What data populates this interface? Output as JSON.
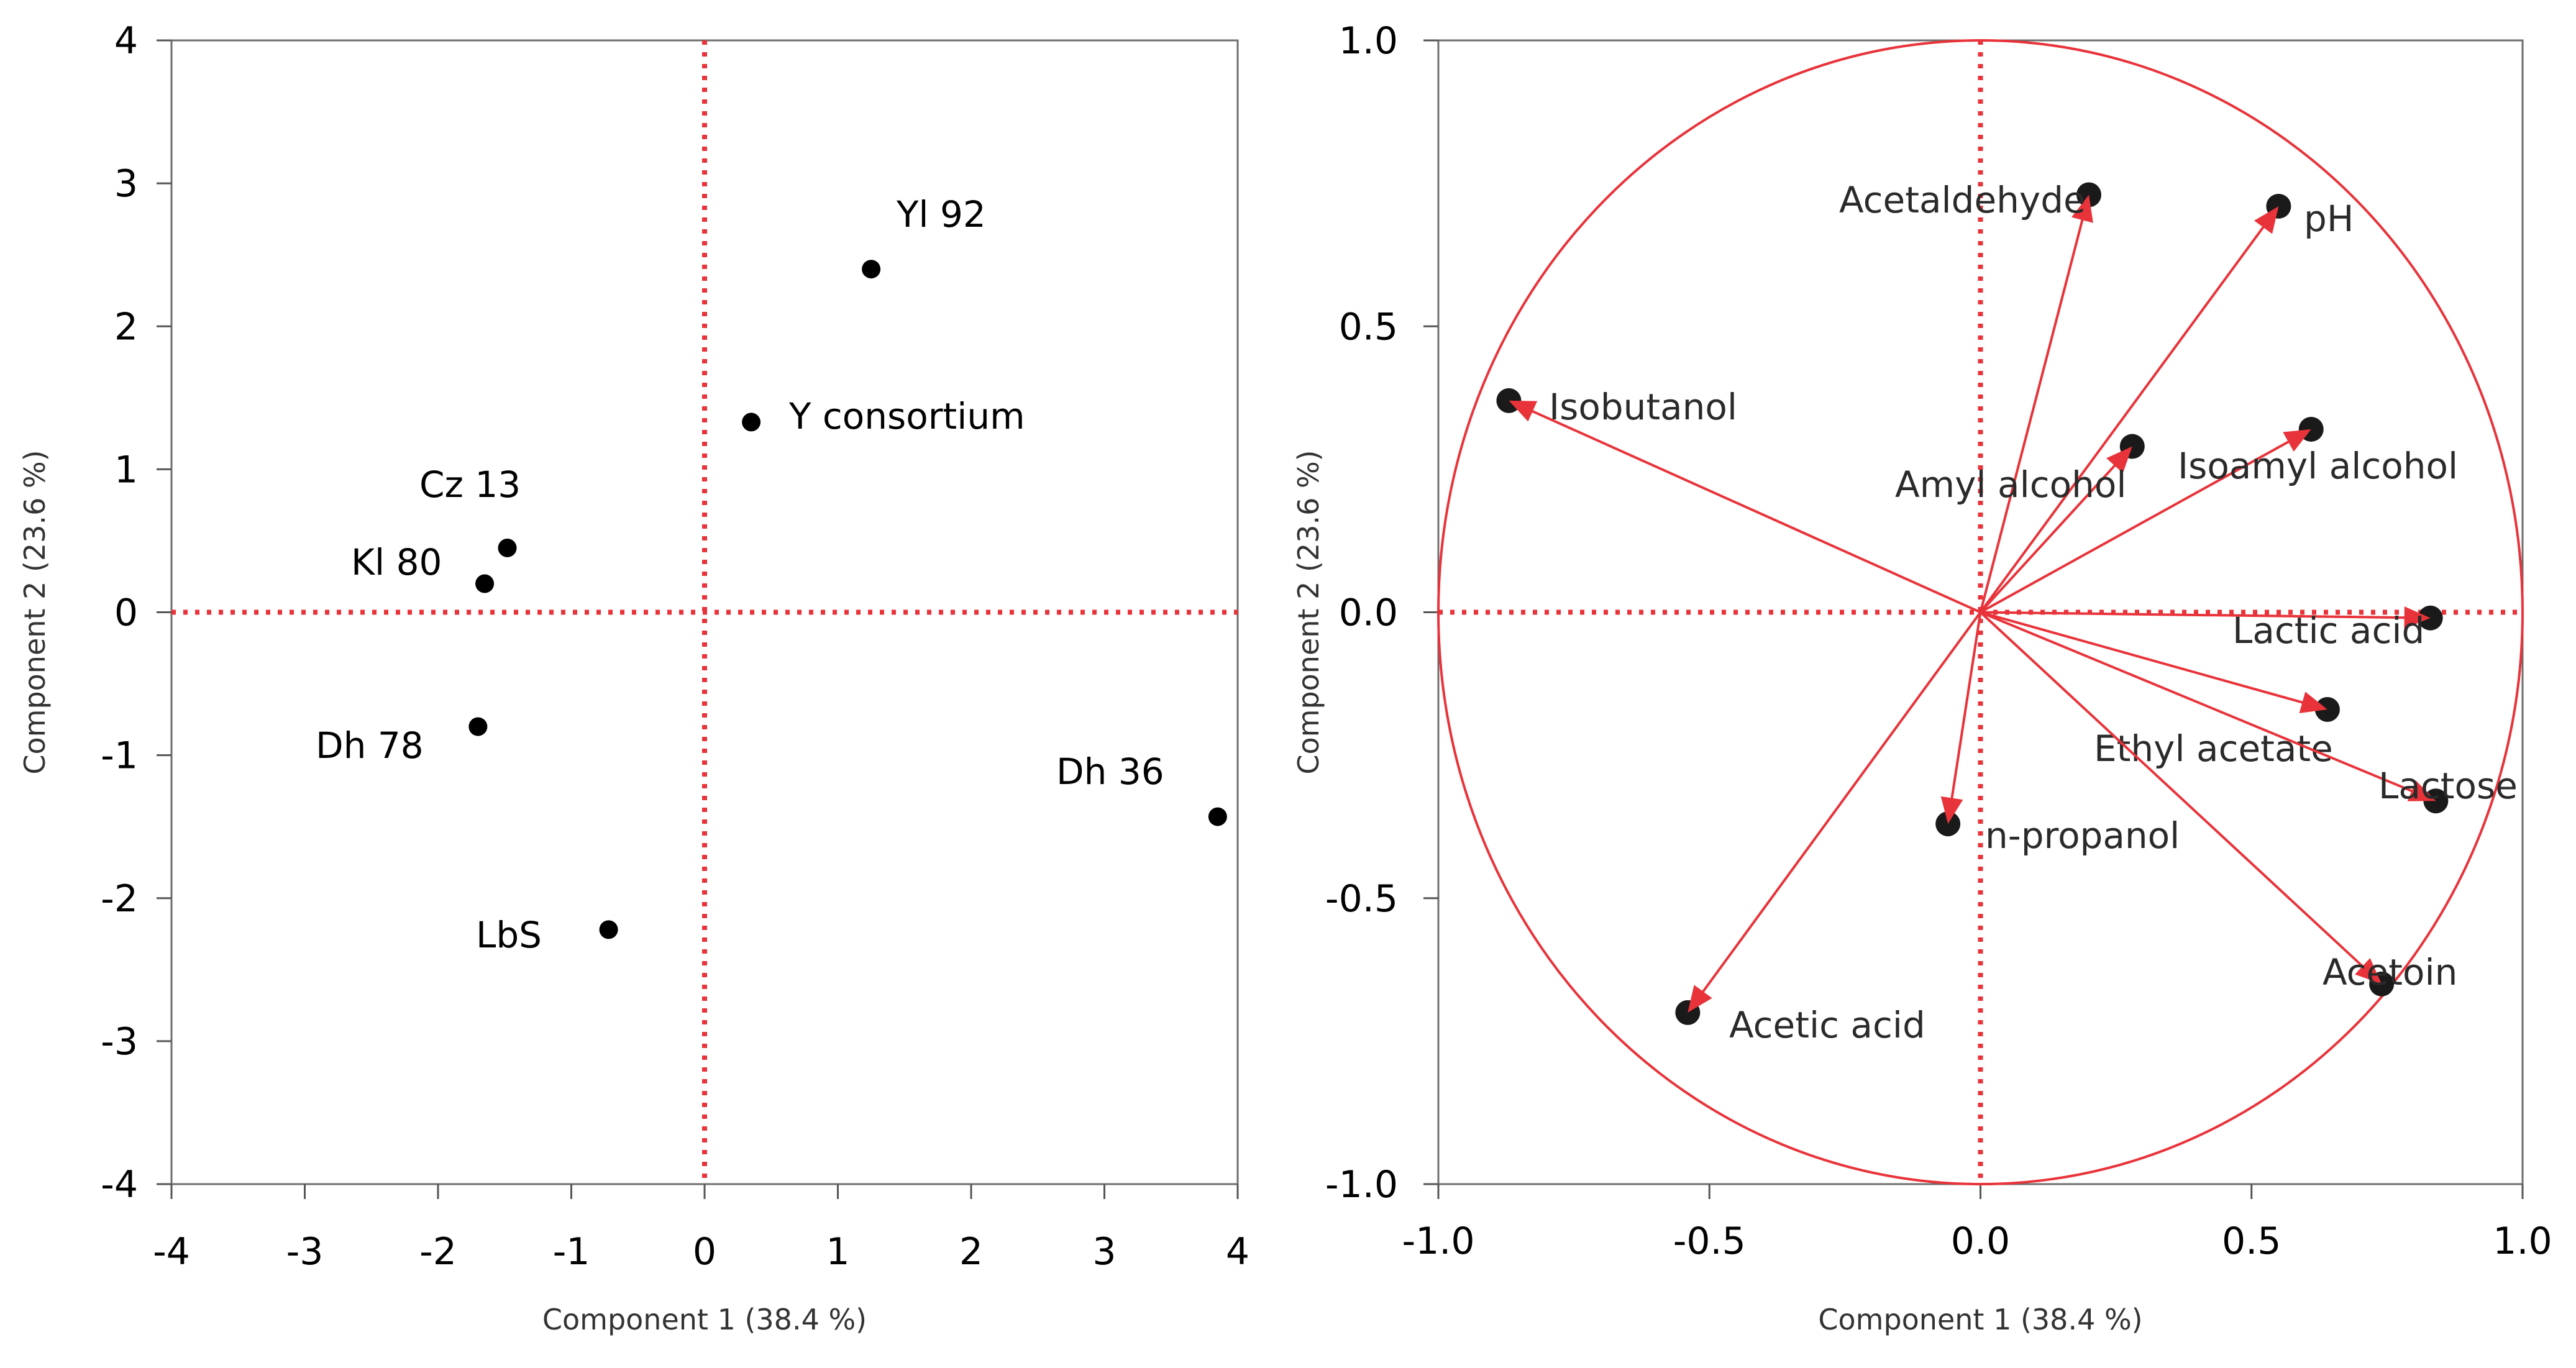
{
  "chart_data": [
    {
      "type": "scatter",
      "xlabel": "Component 1 (38.4 %)",
      "ylabel": "Component 2 (23.6 %)",
      "xlim": [
        -4,
        4
      ],
      "ylim": [
        -4,
        4
      ],
      "xticks": [
        -4,
        -3,
        -2,
        -1,
        0,
        1,
        2,
        3,
        4
      ],
      "yticks": [
        -4,
        -3,
        -2,
        -1,
        0,
        1,
        2,
        3,
        4
      ],
      "xtick_labels": [
        "-4",
        "-3",
        "-2",
        "-1",
        "0",
        "1",
        "2",
        "3",
        "4"
      ],
      "ytick_labels": [
        "-4",
        "-3",
        "-2",
        "-1",
        "0",
        "1",
        "2",
        "3",
        "4"
      ],
      "reference_lines": {
        "x": 0,
        "y": 0,
        "style": "dotted",
        "color": "#e8333a"
      },
      "point_color": "#000000",
      "points": [
        {
          "label": "Yl 92",
          "x": 1.25,
          "y": 2.4
        },
        {
          "label": "Y consortium",
          "x": 0.35,
          "y": 1.33
        },
        {
          "label": "Cz 13",
          "x": -1.48,
          "y": 0.45
        },
        {
          "label": "Kl 80",
          "x": -1.65,
          "y": 0.2
        },
        {
          "label": "Dh 78",
          "x": -1.7,
          "y": -0.8
        },
        {
          "label": "Dh 36",
          "x": 3.85,
          "y": -1.43
        },
        {
          "label": "LbS",
          "x": -0.72,
          "y": -2.22
        }
      ]
    },
    {
      "type": "scatter",
      "subtype": "loading-vectors",
      "xlabel": "Component 1 (38.4 %)",
      "ylabel": "Component 2 (23.6 %)",
      "xlim": [
        -1.0,
        1.0
      ],
      "ylim": [
        -1.0,
        1.0
      ],
      "xticks": [
        -1.0,
        -0.5,
        0.0,
        0.5,
        1.0
      ],
      "yticks": [
        -1.0,
        -0.5,
        0.0,
        0.5,
        1.0
      ],
      "xtick_labels": [
        "-1.0",
        "-0.5",
        "0.0",
        "0.5",
        "1.0"
      ],
      "ytick_labels": [
        "-1.0",
        "-0.5",
        "0.0",
        "0.5",
        "1.0"
      ],
      "reference_lines": {
        "x": 0,
        "y": 0,
        "style": "dotted",
        "color": "#e8333a"
      },
      "unit_circle": true,
      "vector_color": "#e8333a",
      "loadings": [
        {
          "label": "Acetaldehyde",
          "x": 0.2,
          "y": 0.73
        },
        {
          "label": "pH",
          "x": 0.55,
          "y": 0.71
        },
        {
          "label": "Isobutanol",
          "x": -0.87,
          "y": 0.37
        },
        {
          "label": "Amyl alcohol",
          "x": 0.28,
          "y": 0.29
        },
        {
          "label": "Isoamyl alcohol",
          "x": 0.61,
          "y": 0.32
        },
        {
          "label": "Lactic acid",
          "x": 0.83,
          "y": -0.01
        },
        {
          "label": "Ethyl acetate",
          "x": 0.64,
          "y": -0.17
        },
        {
          "label": "Lactose",
          "x": 0.84,
          "y": -0.33
        },
        {
          "label": "n-propanol",
          "x": -0.06,
          "y": -0.37
        },
        {
          "label": "Acetoin",
          "x": 0.74,
          "y": -0.65
        },
        {
          "label": "Acetic acid",
          "x": -0.54,
          "y": -0.7
        }
      ]
    }
  ]
}
